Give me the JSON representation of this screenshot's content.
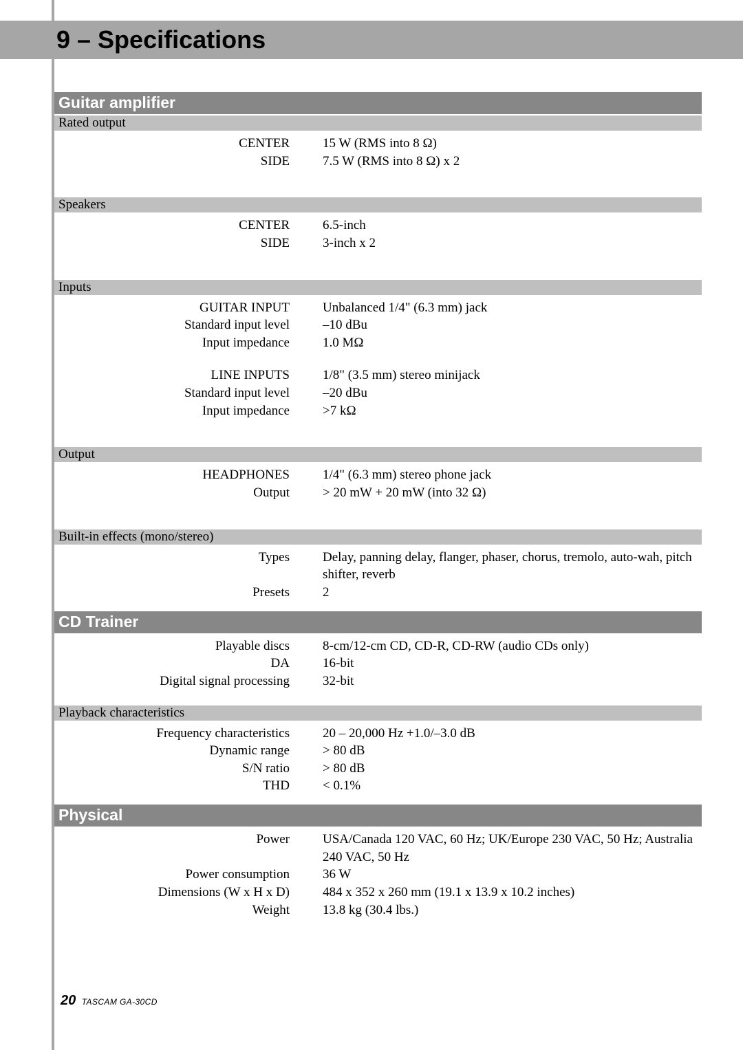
{
  "colors": {
    "page_bg": "#ffffff",
    "outer_bg": "#a6a6a6",
    "rule": "#a6a6a6",
    "header_band": "#a6a6a6",
    "header_text": "#000000",
    "section_bg": "#878787",
    "section_text": "#ffffff",
    "sub_bg": "#bfbfbf",
    "body_text": "#000000"
  },
  "header": "9 – Specifications",
  "sections": {
    "guitar_amplifier": {
      "title": "Guitar amplifier",
      "groups": [
        {
          "sub": "Rated output",
          "rows": [
            {
              "label": "CENTER",
              "value": "15 W (RMS into 8 Ω)"
            },
            {
              "label": "SIDE",
              "value": "7.5 W (RMS into 8 Ω) x 2"
            }
          ]
        },
        {
          "sub": "Speakers",
          "rows": [
            {
              "label": "CENTER",
              "value": "6.5-inch"
            },
            {
              "label": "SIDE",
              "value": "3-inch x 2"
            }
          ]
        },
        {
          "sub": "Inputs",
          "blocks": [
            [
              {
                "label": "GUITAR INPUT",
                "value": "Unbalanced 1/4\" (6.3 mm) jack"
              },
              {
                "label": "Standard input level",
                "value": "–10 dBu"
              },
              {
                "label": "Input impedance",
                "value": "1.0 MΩ"
              }
            ],
            [
              {
                "label": "LINE INPUTS",
                "value": "1/8\" (3.5 mm) stereo minijack"
              },
              {
                "label": "Standard input level",
                "value": "–20 dBu"
              },
              {
                "label": "Input impedance",
                "value": ">7 kΩ"
              }
            ]
          ]
        },
        {
          "sub": "Output",
          "rows": [
            {
              "label": "HEADPHONES",
              "value": "1/4\" (6.3 mm) stereo phone jack"
            },
            {
              "label": "Output",
              "value": "> 20 mW + 20 mW (into 32 Ω)"
            }
          ]
        },
        {
          "sub": "Built-in effects (mono/stereo)",
          "rows": [
            {
              "label": "Types",
              "value": "Delay, panning delay, flanger, phaser, chorus, tremolo, auto-wah, pitch shifter, reverb"
            },
            {
              "label": "Presets",
              "value": "2"
            }
          ]
        }
      ]
    },
    "cd_trainer": {
      "title": "CD Trainer",
      "groups": [
        {
          "rows": [
            {
              "label": "Playable discs",
              "value": "8-cm/12-cm CD, CD-R, CD-RW (audio CDs only)"
            },
            {
              "label": "DA",
              "value": "16-bit"
            },
            {
              "label": "Digital signal processing",
              "value": "32-bit"
            }
          ]
        },
        {
          "sub": "Playback characteristics",
          "rows": [
            {
              "label": "Frequency characteristics",
              "value": "20 – 20,000 Hz +1.0/–3.0 dB"
            },
            {
              "label": "Dynamic range",
              "value": "> 80 dB"
            },
            {
              "label": "S/N ratio",
              "value": "> 80 dB"
            },
            {
              "label": "THD",
              "value": "< 0.1%"
            }
          ]
        }
      ]
    },
    "physical": {
      "title": "Physical",
      "groups": [
        {
          "rows": [
            {
              "label": "Power",
              "value": "USA/Canada 120 VAC, 60 Hz; UK/Europe 230 VAC, 50 Hz; Australia 240 VAC, 50 Hz"
            },
            {
              "label": "Power consumption",
              "value": "36 W"
            },
            {
              "label": "Dimensions (W x H x D)",
              "value": "484 x 352 x 260 mm (19.1 x 13.9 x 10.2 inches)"
            },
            {
              "label": "Weight",
              "value": "13.8 kg (30.4 lbs.)"
            }
          ]
        }
      ]
    }
  },
  "footer": {
    "page_number": "20",
    "product": "TASCAM  GA-30CD"
  }
}
